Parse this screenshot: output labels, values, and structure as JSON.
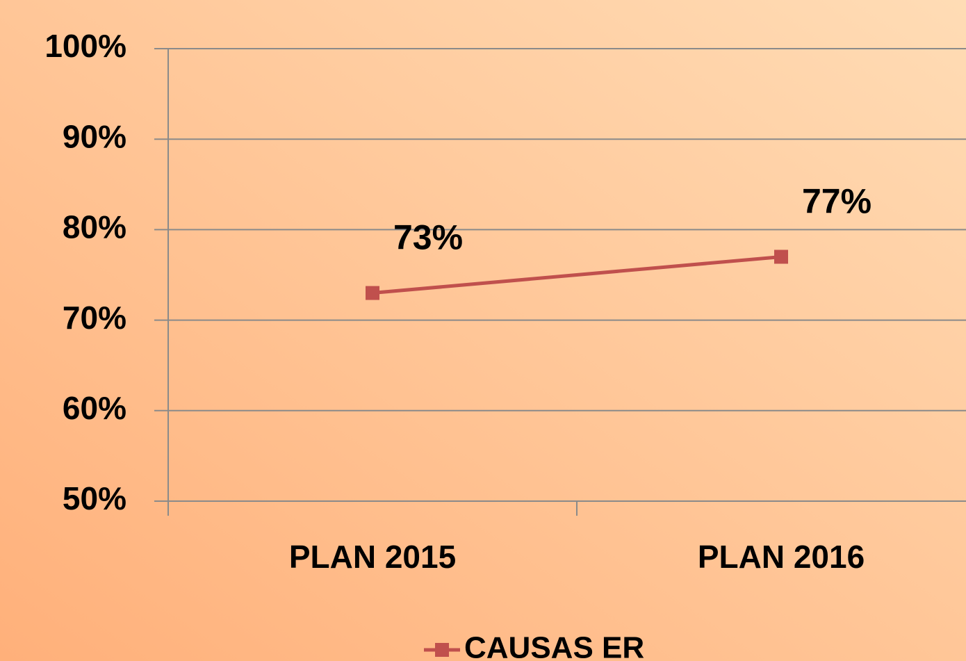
{
  "chart_data": {
    "type": "line",
    "categories": [
      "PLAN 2015",
      "PLAN 2016"
    ],
    "series": [
      {
        "name": "CAUSAS ER",
        "color": "#c0504d",
        "values": [
          73,
          77
        ],
        "value_labels": [
          "73%",
          "77%"
        ]
      }
    ],
    "ylim": [
      50,
      100
    ],
    "yticks": [
      {
        "value": 50,
        "label": "50%"
      },
      {
        "value": 60,
        "label": "60%"
      },
      {
        "value": 70,
        "label": "70%"
      },
      {
        "value": 80,
        "label": "80%"
      },
      {
        "value": 90,
        "label": "90%"
      },
      {
        "value": 100,
        "label": "100%"
      }
    ],
    "grid": true,
    "legend": "bottom"
  }
}
